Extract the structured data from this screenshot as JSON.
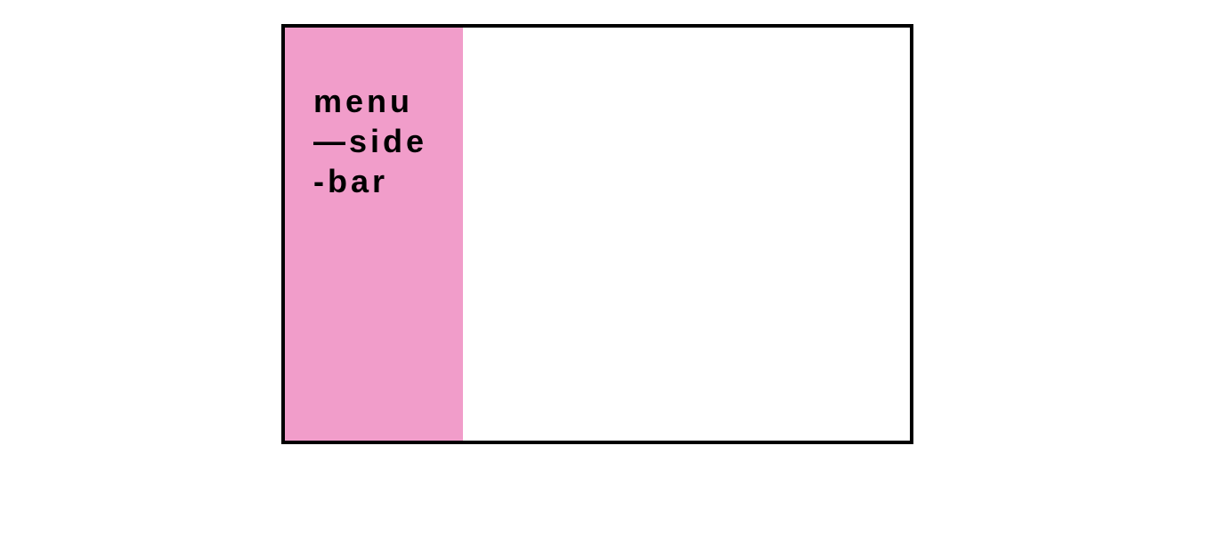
{
  "sidebar": {
    "lines": [
      "menu",
      "—side",
      "-bar"
    ],
    "background_color": "#f19dca"
  },
  "frame": {
    "border_color": "#000000"
  }
}
